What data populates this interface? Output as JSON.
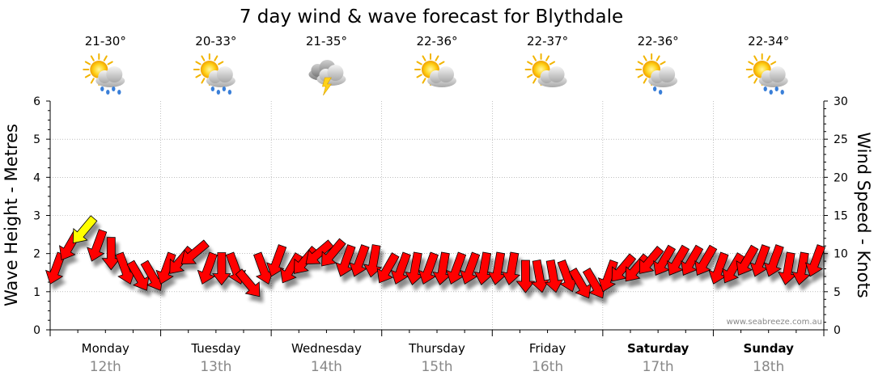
{
  "chart_data": {
    "type": "wind-wave-forecast",
    "title": "7 day wind & wave forecast for Blythdale",
    "ylabel_left": "Wave Height - Metres",
    "ylabel_right": "Wind Speed - Knots",
    "ylim_left": [
      0,
      6
    ],
    "ylim_right": [
      0,
      30
    ],
    "yticks_left": [
      "0",
      "1",
      "2",
      "3",
      "4",
      "5",
      "6"
    ],
    "yticks_right": [
      "0",
      "5",
      "10",
      "15",
      "20",
      "25",
      "30"
    ],
    "grid": true,
    "credit": "www.seabreeze.com.au",
    "days": [
      {
        "name": "Monday",
        "date": "12th",
        "temp": "21-30°",
        "icon": "sun-cloud-rain-icon",
        "bold": false
      },
      {
        "name": "Tuesday",
        "date": "13th",
        "temp": "20-33°",
        "icon": "sun-cloud-rain-icon",
        "bold": false
      },
      {
        "name": "Wednesday",
        "date": "14th",
        "temp": "21-35°",
        "icon": "thunderstorm-icon",
        "bold": false
      },
      {
        "name": "Thursday",
        "date": "15th",
        "temp": "22-36°",
        "icon": "sun-cloud-icon",
        "bold": false
      },
      {
        "name": "Friday",
        "date": "16th",
        "temp": "22-37°",
        "icon": "sun-cloud-icon",
        "bold": false
      },
      {
        "name": "Saturday",
        "date": "17th",
        "temp": "22-36°",
        "icon": "sun-cloud-showers-icon",
        "bold": true
      },
      {
        "name": "Sunday",
        "date": "18th",
        "temp": "22-34°",
        "icon": "sun-cloud-rain-icon",
        "bold": true
      }
    ],
    "wind_color_normal": "#ff0000",
    "wind_color_strong": "#ffff00",
    "wind": {
      "day_offsets": [
        0,
        0.125,
        0.25,
        0.375,
        0.5,
        0.625,
        0.75,
        0.875,
        1,
        1.125,
        1.25,
        1.375,
        1.5,
        1.625,
        1.75,
        1.875,
        2,
        2.125,
        2.25,
        2.375,
        2.5,
        2.625,
        2.75,
        2.875,
        3,
        3.125,
        3.25,
        3.375,
        3.5,
        3.625,
        3.75,
        3.875,
        4,
        4.125,
        4.25,
        4.375,
        4.5,
        4.625,
        4.75,
        4.875,
        5,
        5.125,
        5.25,
        5.375,
        5.5,
        5.625,
        5.75,
        5.875,
        6,
        6.125,
        6.25,
        6.375,
        6.5,
        6.625,
        6.75,
        6.875
      ],
      "speed_knots": [
        8,
        11,
        13,
        11,
        10,
        8,
        7,
        7,
        8,
        9,
        10,
        8,
        8,
        8,
        6,
        8,
        9,
        8,
        9,
        10,
        10,
        9,
        9,
        9,
        8,
        8,
        8,
        8,
        8,
        8,
        8,
        8,
        8,
        8,
        7,
        7,
        7,
        7,
        6,
        6,
        7,
        8,
        8,
        9,
        9,
        9,
        9,
        9,
        8,
        8,
        9,
        9,
        9,
        8,
        8,
        9
      ],
      "strong": [
        false,
        false,
        true,
        false,
        false,
        false,
        false,
        false,
        false,
        false,
        false,
        false,
        false,
        false,
        false,
        false,
        false,
        false,
        false,
        false,
        false,
        false,
        false,
        false,
        false,
        false,
        false,
        false,
        false,
        false,
        false,
        false,
        false,
        false,
        false,
        false,
        false,
        false,
        false,
        false,
        false,
        false,
        false,
        false,
        false,
        false,
        false,
        false,
        false,
        false,
        false,
        false,
        false,
        false,
        false,
        false
      ],
      "direction_deg": [
        200,
        210,
        220,
        200,
        180,
        160,
        150,
        150,
        200,
        220,
        230,
        200,
        180,
        160,
        140,
        160,
        200,
        210,
        220,
        230,
        220,
        200,
        200,
        190,
        210,
        200,
        190,
        200,
        190,
        200,
        200,
        190,
        190,
        190,
        180,
        170,
        170,
        160,
        150,
        150,
        200,
        220,
        220,
        220,
        210,
        210,
        210,
        210,
        200,
        210,
        210,
        200,
        200,
        190,
        190,
        200
      ]
    }
  }
}
